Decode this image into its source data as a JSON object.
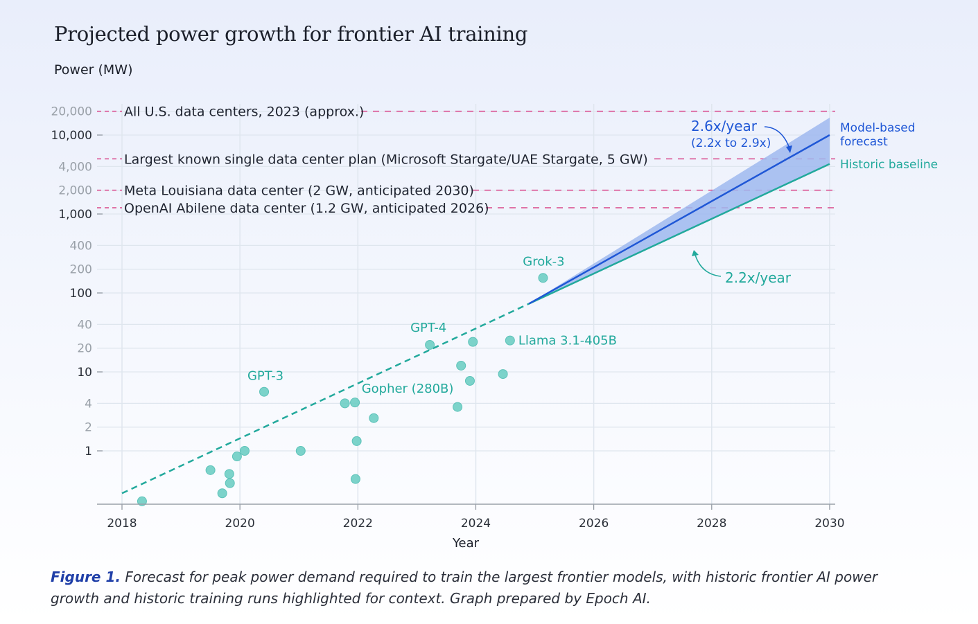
{
  "chart_data": {
    "type": "scatter",
    "title": "Projected power growth for frontier AI training",
    "ylabel": "Power (MW)",
    "xlabel": "Year",
    "y_scale": "log",
    "ylim": [
      0.21,
      26000
    ],
    "xlim": [
      2017.6,
      2030.1
    ],
    "grid": true,
    "x_ticks": [
      "2018",
      "2020",
      "2022",
      "2024",
      "2026",
      "2028",
      "2030"
    ],
    "x_tick_values": [
      2018,
      2020,
      2022,
      2024,
      2026,
      2028,
      2030
    ],
    "y_ticks": [
      {
        "value": 20000,
        "label": "20,000",
        "major": false
      },
      {
        "value": 10000,
        "label": "10,000",
        "major": true
      },
      {
        "value": 4000,
        "label": "4,000",
        "major": false
      },
      {
        "value": 2000,
        "label": "2,000",
        "major": false
      },
      {
        "value": 1000,
        "label": "1,000",
        "major": true
      },
      {
        "value": 400,
        "label": "400",
        "major": false
      },
      {
        "value": 200,
        "label": "200",
        "major": false
      },
      {
        "value": 100,
        "label": "100",
        "major": true
      },
      {
        "value": 40,
        "label": "40",
        "major": false
      },
      {
        "value": 20,
        "label": "20",
        "major": false
      },
      {
        "value": 10,
        "label": "10",
        "major": true
      },
      {
        "value": 4,
        "label": "4",
        "major": false
      },
      {
        "value": 2,
        "label": "2",
        "major": false
      },
      {
        "value": 1,
        "label": "1",
        "major": true
      }
    ],
    "reference_lines": [
      {
        "value": 20000,
        "label": "All U.S. data centers, 2023 (approx.)"
      },
      {
        "value": 5000,
        "label": "Largest known single data center plan (Microsoft Stargate/UAE Stargate, 5 GW)"
      },
      {
        "value": 2000,
        "label": "Meta Louisiana data center (2 GW, anticipated 2030)"
      },
      {
        "value": 1200,
        "label": "OpenAI Abilene data center (1.2 GW, anticipated 2026)"
      }
    ],
    "points": [
      {
        "x": 2018.34,
        "y": 0.23,
        "label": ""
      },
      {
        "x": 2019.5,
        "y": 0.57,
        "label": ""
      },
      {
        "x": 2019.7,
        "y": 0.29,
        "label": ""
      },
      {
        "x": 2019.82,
        "y": 0.51,
        "label": ""
      },
      {
        "x": 2019.83,
        "y": 0.39,
        "label": ""
      },
      {
        "x": 2019.95,
        "y": 0.85,
        "label": ""
      },
      {
        "x": 2020.08,
        "y": 1.0,
        "label": ""
      },
      {
        "x": 2020.41,
        "y": 5.6,
        "label": "GPT-3"
      },
      {
        "x": 2021.03,
        "y": 1.0,
        "label": ""
      },
      {
        "x": 2021.78,
        "y": 4.0,
        "label": ""
      },
      {
        "x": 2021.95,
        "y": 4.1,
        "label": "Gopher (280B)"
      },
      {
        "x": 2021.96,
        "y": 0.44,
        "label": ""
      },
      {
        "x": 2021.98,
        "y": 1.33,
        "label": ""
      },
      {
        "x": 2022.27,
        "y": 2.6,
        "label": ""
      },
      {
        "x": 2023.22,
        "y": 22,
        "label": "GPT-4"
      },
      {
        "x": 2023.69,
        "y": 3.6,
        "label": ""
      },
      {
        "x": 2023.75,
        "y": 12,
        "label": ""
      },
      {
        "x": 2023.9,
        "y": 7.7,
        "label": ""
      },
      {
        "x": 2023.95,
        "y": 24,
        "label": ""
      },
      {
        "x": 2024.46,
        "y": 9.4,
        "label": ""
      },
      {
        "x": 2024.58,
        "y": 25,
        "label": "Llama 3.1-405B"
      },
      {
        "x": 2025.14,
        "y": 155,
        "label": "Grok-3"
      }
    ],
    "historic_trend": {
      "x": [
        2018,
        2024.9
      ],
      "y": [
        0.29,
        73
      ],
      "style": "dashed"
    },
    "series": [
      {
        "name": "Model-based forecast",
        "x": [
          2024.9,
          2030
        ],
        "y": [
          73,
          10000
        ],
        "band_low": [
          73,
          4300
        ],
        "band_high": [
          73,
          16600
        ]
      },
      {
        "name": "Historic baseline",
        "x": [
          2024.9,
          2030
        ],
        "y": [
          73,
          4300
        ]
      }
    ],
    "annotations": {
      "forecast_rate": "2.6x/year",
      "forecast_range": "(2.2x to 2.9x)",
      "baseline_rate": "2.2x/year"
    },
    "caption_label": "Figure 1.",
    "caption_text": "Forecast for peak power demand required to train the largest frontier models, with historic frontier AI power growth and historic training runs highlighted for context. Graph prepared by Epoch AI."
  },
  "colors": {
    "forecast": "#1f57d6",
    "band": "#9fb8ef",
    "baseline": "#22a99c",
    "points": "#6fcfc5",
    "reference": "#d9468a",
    "grid": "#dfe6ee"
  }
}
